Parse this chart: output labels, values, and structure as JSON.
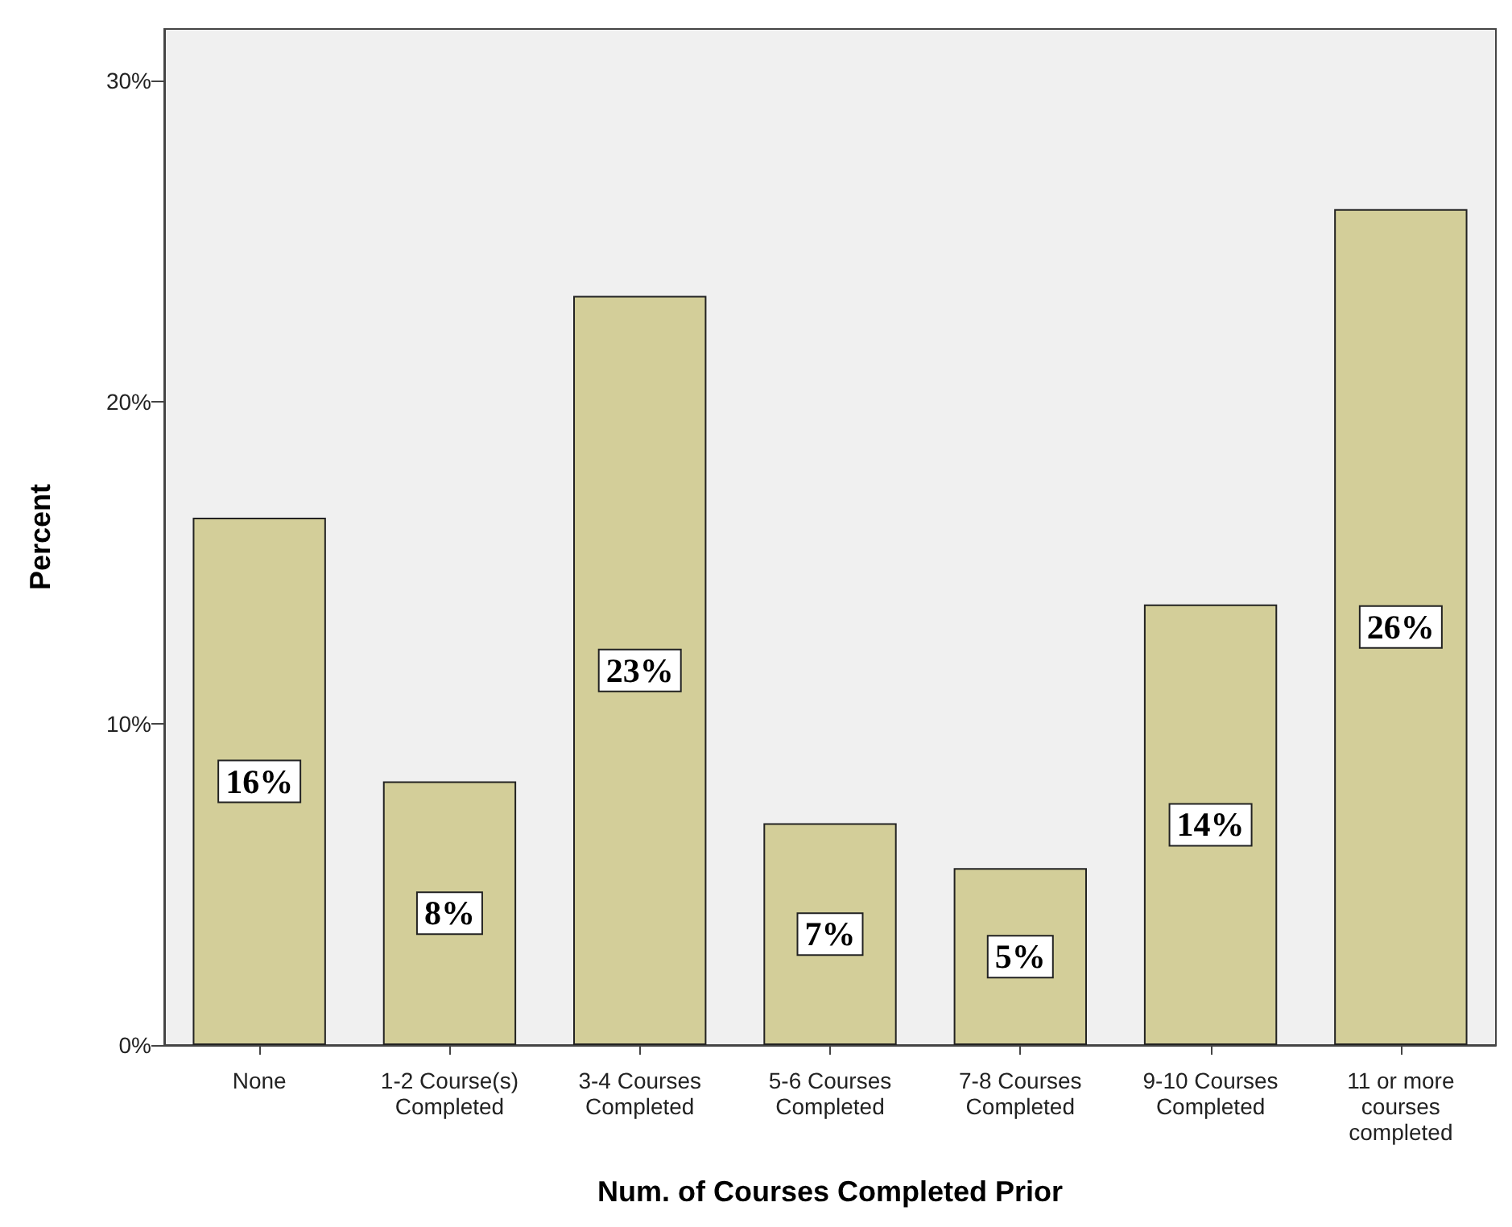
{
  "chart_data": {
    "type": "bar",
    "xlabel": "Num. of Courses Completed Prior",
    "ylabel": "Percent",
    "categories": [
      "None",
      "1-2 Course(s)\nCompleted",
      "3-4 Courses\nCompleted",
      "5-6 Courses\nCompleted",
      "7-8 Courses\nCompleted",
      "9-10 Courses\nCompleted",
      "11 or more\ncourses\ncompleted"
    ],
    "values": [
      16.4,
      8.2,
      23.3,
      6.9,
      5.5,
      13.7,
      26.0
    ],
    "value_labels": [
      "16%",
      "8%",
      "23%",
      "7%",
      "5%",
      "14%",
      "26%"
    ],
    "color": "#d3ce99",
    "ylim": [
      0,
      31.6
    ],
    "yticks": [
      {
        "value": 0,
        "label": "0%"
      },
      {
        "value": 10,
        "label": "10%"
      },
      {
        "value": 20,
        "label": "20%"
      },
      {
        "value": 30,
        "label": "30%"
      }
    ],
    "grid": false
  }
}
